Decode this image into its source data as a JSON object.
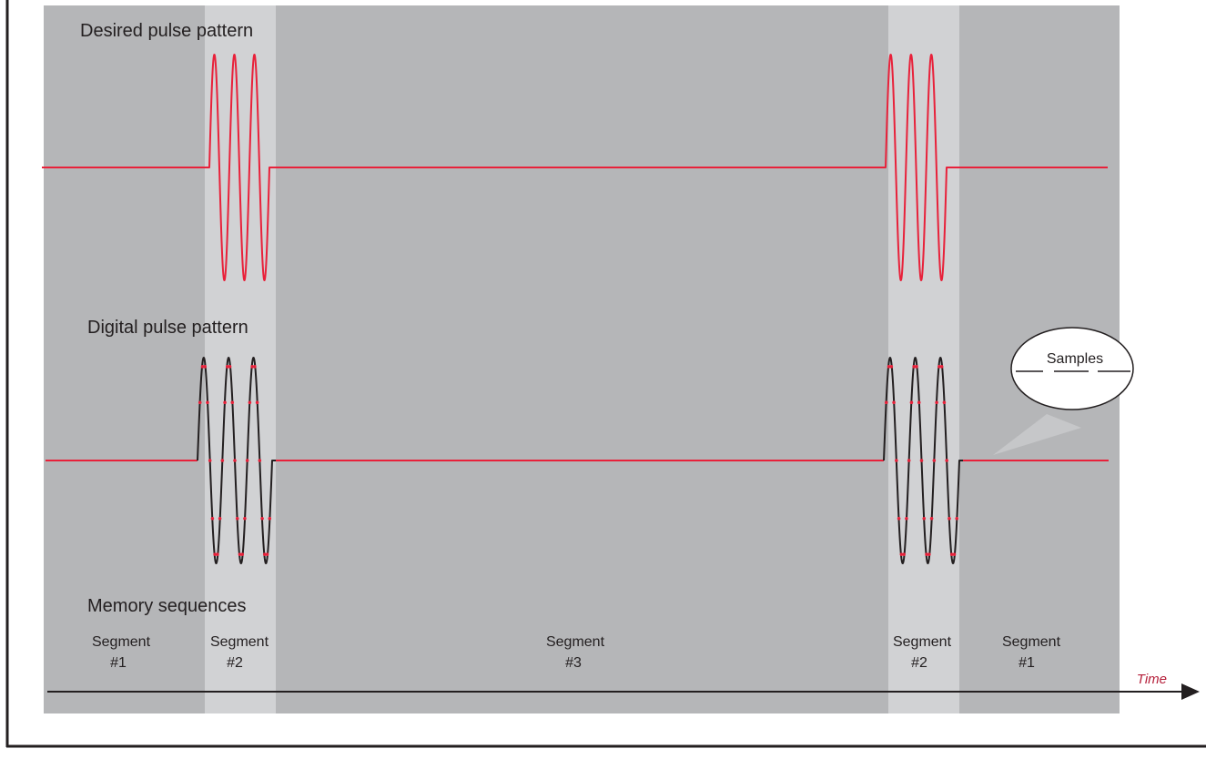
{
  "colors": {
    "background": "#ffffff",
    "panel": "#b5b6b8",
    "highlight": "#d1d2d4",
    "pulse": "#e8213a",
    "digital": "#231f20",
    "frame": "#231f20",
    "label": "#231f20",
    "time_label": "#b51f3a"
  },
  "labels": {
    "desired": "Desired pulse pattern",
    "digital": "Digital pulse pattern",
    "memory": "Memory sequences",
    "samples": "Samples",
    "time": "Time"
  },
  "segments": [
    {
      "name": "Segment",
      "number": "#1"
    },
    {
      "name": "Segment",
      "number": "#2"
    },
    {
      "name": "Segment",
      "number": "#3"
    },
    {
      "name": "Segment",
      "number": "#2"
    },
    {
      "name": "Segment",
      "number": "#1"
    }
  ],
  "pulses": {
    "burst_cycles": 3
  }
}
